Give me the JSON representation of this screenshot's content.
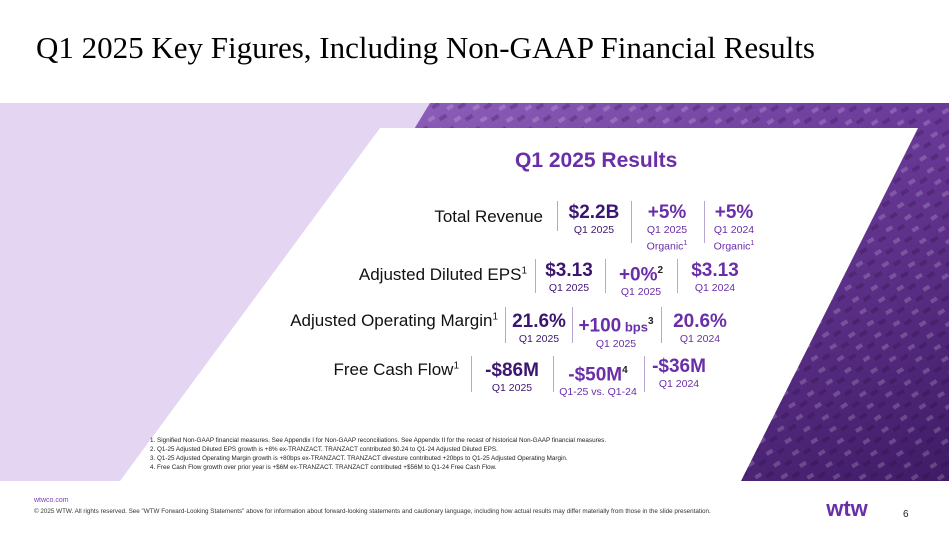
{
  "title": "Q1 2025 Key Figures, Including Non-GAAP Financial Results",
  "heading": "Q1 2025 Results",
  "rows": {
    "revenue": {
      "label": "Total Revenue",
      "sup": "",
      "m1_value": "$2.2B",
      "m1_sub": "Q1 2025",
      "m2_value": "+5%",
      "m2_sub1": "Q1 2025",
      "m2_sub2": "Organic",
      "m2_sub2_sup": "1",
      "m3_value": "+5%",
      "m3_sub1": "Q1 2024",
      "m3_sub2": "Organic",
      "m3_sub2_sup": "1"
    },
    "eps": {
      "label": "Adjusted Diluted EPS",
      "sup": "1",
      "m1_value": "$3.13",
      "m1_sub": "Q1 2025",
      "m2_value": "+0%",
      "m2_sup": "2",
      "m2_sub": "Q1 2025",
      "m3_value": "$3.13",
      "m3_sub": "Q1 2024"
    },
    "margin": {
      "label": "Adjusted Operating Margin",
      "sup": "1",
      "m1_value": "21.6%",
      "m1_sub": "Q1 2025",
      "m2_value": "+100",
      "m2_unit": " bps",
      "m2_sup": "3",
      "m2_sub": "Q1 2025",
      "m3_value": "20.6%",
      "m3_sub": "Q1 2024"
    },
    "fcf": {
      "label": "Free Cash Flow",
      "sup": "1",
      "m1_value": "-$86M",
      "m1_sub": "Q1 2025",
      "m2_value": "-$50M",
      "m2_sup": "4",
      "m2_sub": "Q1-25 vs. Q1-24",
      "m3_value": "-$36M",
      "m3_sub": "Q1 2024"
    }
  },
  "footnotes": [
    "1. Signified Non-GAAP financial measures. See Appendix I for Non-GAAP reconciliations. See Appendix II for the recast of historical Non-GAAP financial measures.",
    "2. Q1-25 Adjusted Diluted EPS growth is +8% ex-TRANZACT. TRANZACT contributed $0.24 to Q1-24 Adjusted Diluted EPS.",
    "3. Q1-25 Adjusted Operating Margin growth is +80bps ex-TRANZACT. TRANZACT divesture contributed +20bps to Q1-25 Adjusted Operating Margin.",
    "4. Free Cash Flow growth over prior year is +$6M ex-TRANZACT. TRANZACT contributed +$56M to Q1-24 Free Cash Flow."
  ],
  "footer": {
    "link": "wtwco.com",
    "legal": "© 2025 WTW. All rights reserved. See \"WTW Forward-Looking Statements\" above for information about forward-looking statements and cautionary language, including how actual results may differ materially from those in the slide presentation.",
    "logo_text": "wtw",
    "page_number": "6"
  },
  "colors": {
    "accent": "#6a2fa8",
    "band_light": "#e2d3f2",
    "photo_purple": "#5a2a8a"
  }
}
